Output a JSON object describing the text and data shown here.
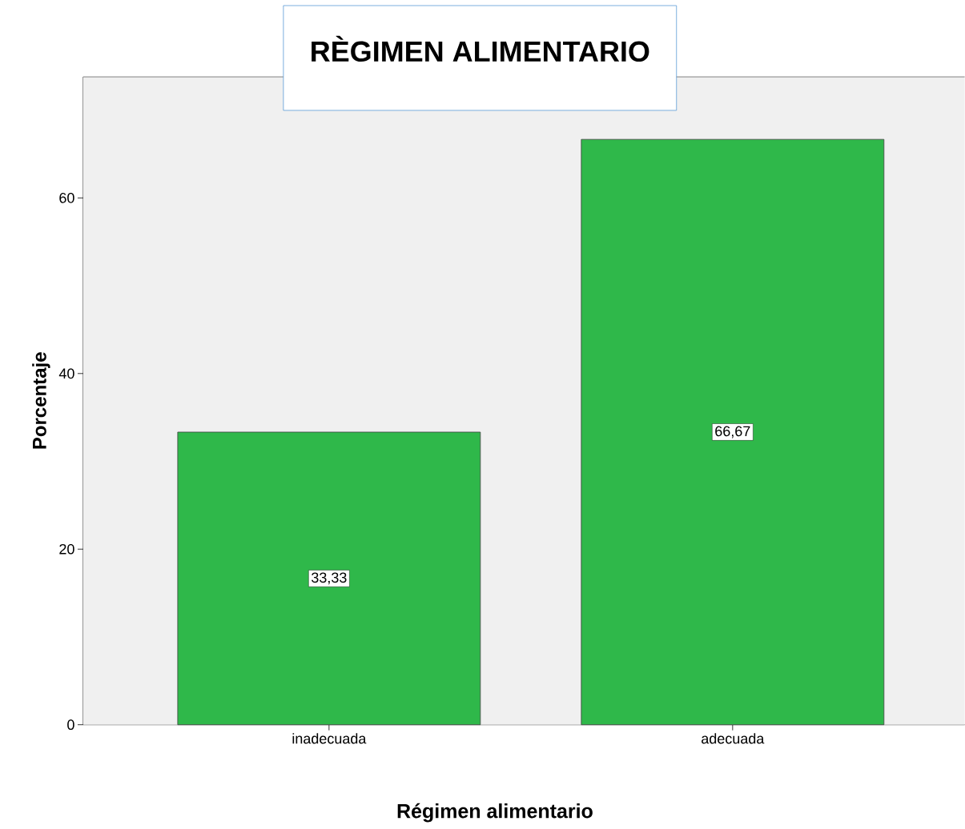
{
  "chart_data": {
    "type": "bar",
    "title": "RÈGIMEN ALIMENTARIO",
    "xlabel": "Régimen alimentario",
    "ylabel": "Porcentaje",
    "categories": [
      "inadecuada",
      "adecuada"
    ],
    "values": [
      33.33,
      66.67
    ],
    "value_labels": [
      "33,33",
      "66,67"
    ],
    "color": "#2fb84a",
    "ylim": [
      0,
      73.8
    ],
    "yticks": [
      0,
      20,
      40,
      60
    ]
  }
}
